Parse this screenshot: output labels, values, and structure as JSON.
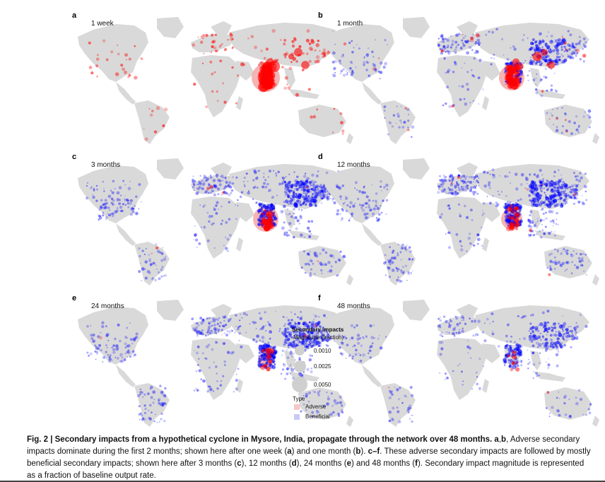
{
  "chart_data": {
    "type": "scatter",
    "base_map": "world",
    "panels": [
      {
        "letter": "a",
        "time": "1 week",
        "dominant_type": "Adverse"
      },
      {
        "letter": "b",
        "time": "1 month",
        "dominant_type": "Adverse"
      },
      {
        "letter": "c",
        "time": "3 months",
        "dominant_type": "Beneficial"
      },
      {
        "letter": "d",
        "time": "12 months",
        "dominant_type": "Beneficial"
      },
      {
        "letter": "e",
        "time": "24 months",
        "dominant_type": "Beneficial"
      },
      {
        "letter": "f",
        "time": "48 months",
        "dominant_type": "Beneficial"
      }
    ],
    "legend": {
      "title": "Secondary impacts",
      "size_label": "Magnitude (fraction)",
      "sizes": [
        "0.0010",
        "0.0025",
        "0.0050"
      ],
      "type_label": "Type",
      "types": [
        {
          "name": "Adverse",
          "color": "#ff0000"
        },
        {
          "name": "Beneficial",
          "color": "#0000ff"
        }
      ]
    }
  },
  "colors": {
    "land": "#d9d9d9",
    "adverse": "#ff0000",
    "beneficial": "#0000ff",
    "source": "#f4a6a6"
  },
  "caption": {
    "fig_label": "Fig. 2 | Secondary impacts from a hypothetical cyclone in Mysore, India, propagate through the network over 48 months.",
    "bold_ab": "a",
    "bold_b": "b",
    "line1_rest": ", Adverse secondary",
    "line2": "impacts dominate during the first 2 months; shown here after one week (",
    "line2b": ") and one month (",
    "line2c": "). ",
    "cf": "c–f",
    "line2d": ". These adverse secondary impacts are followed by",
    "line3": "mostly beneficial secondary impacts; shown here after 3 months (",
    "p12": "), 12 months (",
    "p24": "), 24 months (",
    "p48": ") and 48 months (",
    "line3end": "). Secondary impact magnitude is",
    "line4": "represented as a fraction of baseline output rate.",
    "c": "c",
    "d": "d",
    "e": "e",
    "f": "f"
  }
}
